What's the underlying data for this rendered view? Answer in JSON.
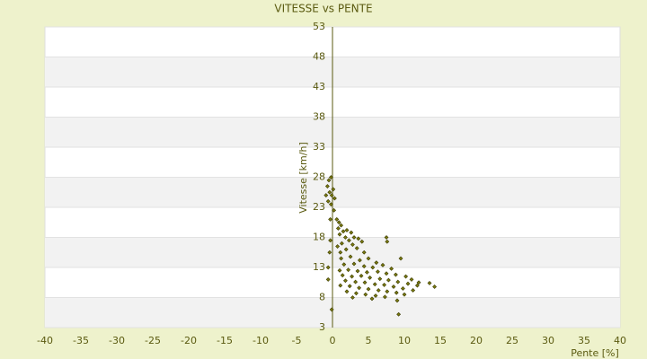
{
  "chart_data": {
    "type": "scatter",
    "title": "VITESSE vs PENTE",
    "x_label": "Pente [%]",
    "y_label": "Vitesse [km/h]",
    "color": "#7a7a10",
    "xlim": [
      -40,
      40
    ],
    "ylim": [
      3,
      53
    ],
    "xticks": [
      -40,
      -35,
      -30,
      -25,
      -20,
      -15,
      -10,
      -5,
      0,
      5,
      10,
      15,
      20,
      25,
      30,
      35,
      40
    ],
    "yticks": [
      3,
      8,
      13,
      18,
      23,
      28,
      33,
      38,
      43,
      48,
      53
    ],
    "grid": true,
    "x": [
      -0.5,
      -0.2,
      -0.7,
      0.1,
      -0.4,
      -0.9,
      -0.1,
      0.3,
      -0.6,
      -0.2,
      0.2,
      -0.3,
      0.6,
      0.9,
      1.2,
      0.8,
      1.5,
      2.0,
      2.6,
      1.0,
      1.8,
      3.0,
      3.6,
      2.3,
      1.3,
      4.1,
      0.7,
      2.8,
      1.9,
      3.4,
      4.4,
      1.1,
      1.2,
      2.5,
      3.8,
      5,
      6.1,
      1.6,
      3,
      4.4,
      5.6,
      7,
      8.2,
      9.5,
      1,
      2.2,
      3.5,
      4.8,
      6.3,
      7.5,
      8.8,
      10.2,
      11,
      1.4,
      2.7,
      4,
      5.2,
      6.6,
      7.8,
      9.1,
      10.5,
      11.8,
      1.8,
      3.2,
      4.5,
      5.9,
      7.2,
      8.5,
      9.8,
      1.1,
      2.4,
      3.7,
      5,
      6.4,
      7.6,
      8.9,
      10,
      2,
      3.3,
      4.6,
      6,
      7.3,
      2.8,
      9,
      5.5,
      11.2,
      12,
      -0.1,
      -0.6,
      -0.6,
      -0.4,
      -0.3,
      14.2,
      13.5,
      7.6,
      7.5,
      9.2
    ],
    "values": [
      27.5,
      28,
      26.5,
      26,
      25.5,
      25,
      25,
      24.5,
      24,
      23.5,
      22.5,
      21,
      21,
      20.5,
      20,
      19.5,
      19,
      19.2,
      18.8,
      18.5,
      18,
      18,
      17.8,
      17.5,
      17,
      17.3,
      16.5,
      16.8,
      16,
      16.2,
      15.5,
      15.5,
      14.5,
      14.8,
      14.2,
      14.5,
      13.8,
      13.5,
      13.6,
      13.2,
      13,
      13.4,
      12.8,
      14.5,
      12.5,
      12.6,
      12.4,
      12.2,
      12.3,
      12,
      11.8,
      11.5,
      11,
      11.7,
      11.5,
      11.6,
      11.3,
      11.1,
      10.9,
      10.6,
      10.3,
      10,
      10.8,
      10.6,
      10.5,
      10.2,
      10.1,
      9.8,
      9.5,
      10,
      9.9,
      9.6,
      9.4,
      9.2,
      9,
      8.8,
      8.5,
      9,
      8.7,
      8.5,
      8.3,
      8.1,
      8,
      7.5,
      7.8,
      9.2,
      10.5,
      6,
      13,
      11,
      15.5,
      17.5,
      9.8,
      10.4,
      17.3,
      18,
      5.2
    ]
  }
}
